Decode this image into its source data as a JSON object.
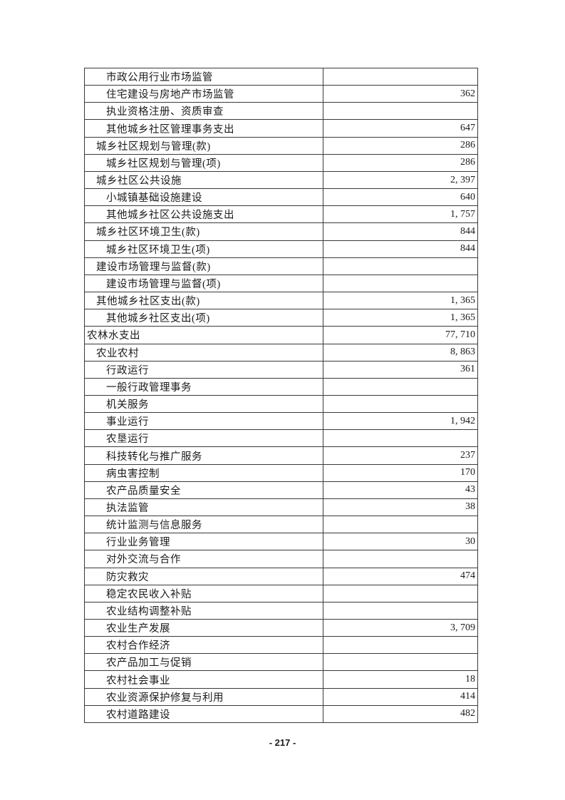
{
  "page": {
    "footer_page_number": "- 217 -",
    "background_color": "#ffffff",
    "border_color": "#3a3a3a",
    "text_color": "#1b1b1b"
  },
  "table": {
    "description": "budget-expenditure-table",
    "columns": [
      "item",
      "amount"
    ],
    "rows": [
      {
        "label": "市政公用行业市场监管",
        "value": "",
        "indent": 2
      },
      {
        "label": "住宅建设与房地产市场监管",
        "value": "362",
        "indent": 2
      },
      {
        "label": "执业资格注册、资质审查",
        "value": "",
        "indent": 2
      },
      {
        "label": "其他城乡社区管理事务支出",
        "value": "647",
        "indent": 2
      },
      {
        "label": "城乡社区规划与管理(款)",
        "value": "286",
        "indent": 1
      },
      {
        "label": "城乡社区规划与管理(项)",
        "value": "286",
        "indent": 2
      },
      {
        "label": "城乡社区公共设施",
        "value": "2, 397",
        "indent": 1
      },
      {
        "label": "小城镇基础设施建设",
        "value": "640",
        "indent": 2
      },
      {
        "label": "其他城乡社区公共设施支出",
        "value": "1, 757",
        "indent": 2
      },
      {
        "label": "城乡社区环境卫生(款)",
        "value": "844",
        "indent": 1
      },
      {
        "label": "城乡社区环境卫生(项)",
        "value": "844",
        "indent": 2
      },
      {
        "label": "建设市场管理与监督(款)",
        "value": "",
        "indent": 1
      },
      {
        "label": "建设市场管理与监督(项)",
        "value": "",
        "indent": 2
      },
      {
        "label": "其他城乡社区支出(款)",
        "value": "1, 365",
        "indent": 1
      },
      {
        "label": "其他城乡社区支出(项)",
        "value": "1, 365",
        "indent": 2
      },
      {
        "label": "农林水支出",
        "value": "77, 710",
        "indent": 0
      },
      {
        "label": "农业农村",
        "value": "8, 863",
        "indent": 1
      },
      {
        "label": "行政运行",
        "value": "361",
        "indent": 2
      },
      {
        "label": "一般行政管理事务",
        "value": "",
        "indent": 2
      },
      {
        "label": "机关服务",
        "value": "",
        "indent": 2
      },
      {
        "label": "事业运行",
        "value": "1, 942",
        "indent": 2
      },
      {
        "label": "农垦运行",
        "value": "",
        "indent": 2
      },
      {
        "label": "科技转化与推广服务",
        "value": "237",
        "indent": 2
      },
      {
        "label": "病虫害控制",
        "value": "170",
        "indent": 2
      },
      {
        "label": "农产品质量安全",
        "value": "43",
        "indent": 2
      },
      {
        "label": "执法监管",
        "value": "38",
        "indent": 2
      },
      {
        "label": "统计监测与信息服务",
        "value": "",
        "indent": 2
      },
      {
        "label": "行业业务管理",
        "value": "30",
        "indent": 2
      },
      {
        "label": "对外交流与合作",
        "value": "",
        "indent": 2
      },
      {
        "label": "防灾救灾",
        "value": "474",
        "indent": 2
      },
      {
        "label": "稳定农民收入补贴",
        "value": "",
        "indent": 2
      },
      {
        "label": "农业结构调整补贴",
        "value": "",
        "indent": 2
      },
      {
        "label": "农业生产发展",
        "value": "3, 709",
        "indent": 2
      },
      {
        "label": "农村合作经济",
        "value": "",
        "indent": 2
      },
      {
        "label": "农产品加工与促销",
        "value": "",
        "indent": 2
      },
      {
        "label": "农村社会事业",
        "value": "18",
        "indent": 2
      },
      {
        "label": "农业资源保护修复与利用",
        "value": "414",
        "indent": 2
      },
      {
        "label": "农村道路建设",
        "value": "482",
        "indent": 2
      }
    ]
  }
}
